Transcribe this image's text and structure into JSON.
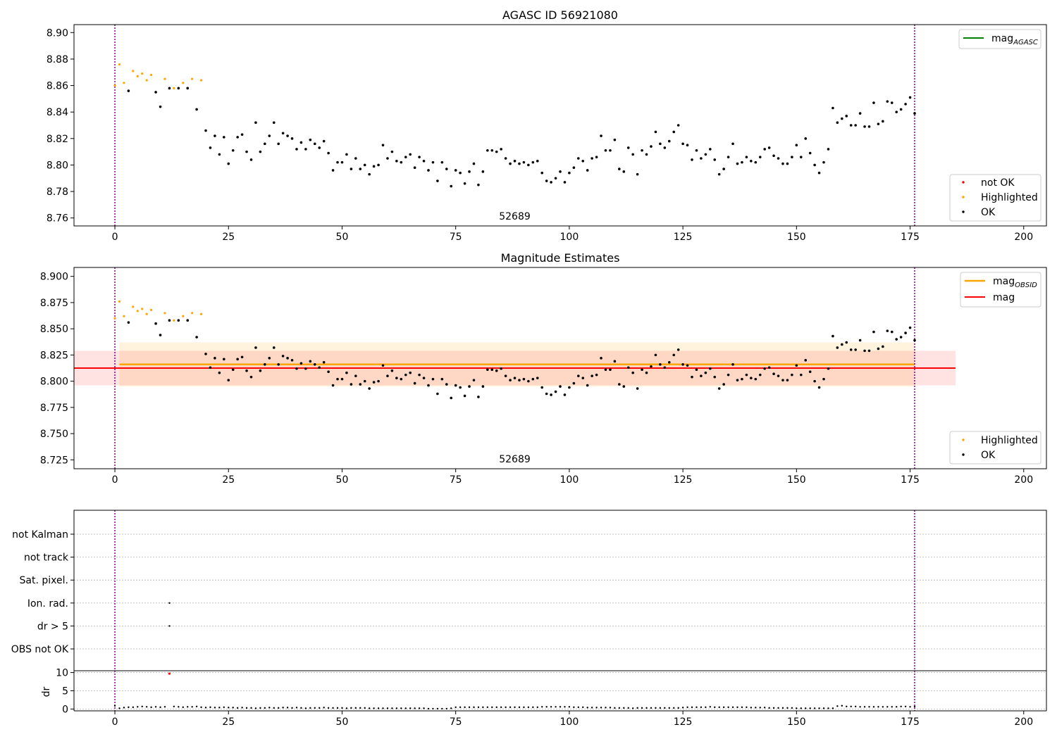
{
  "chart_data": [
    {
      "type": "scatter",
      "title": "AGASC ID 56921080",
      "xlabel": "",
      "ylabel": "",
      "xlim": [
        -9,
        205
      ],
      "ylim": [
        8.754,
        8.906
      ],
      "xticks": [
        0,
        25,
        50,
        75,
        100,
        125,
        150,
        175,
        200
      ],
      "yticks": [
        8.76,
        8.78,
        8.8,
        8.82,
        8.84,
        8.86,
        8.88,
        8.9
      ],
      "ytick_decimals": 2,
      "obsid_label": "52689",
      "obsid_label_x": 88,
      "vlines": [
        0,
        176
      ],
      "vline_color": "#800080",
      "reference_lines": [
        {
          "name": "mag_AGASC",
          "color": "#008000",
          "value": null
        }
      ],
      "legend_top": {
        "placement": "top-right",
        "entries": [
          {
            "label": "mag",
            "sub": "AGASC",
            "color": "#008000",
            "kind": "line"
          }
        ]
      },
      "legend_bottom": {
        "placement": "lower-right",
        "entries": [
          {
            "label": "not OK",
            "color": "#ff0000",
            "kind": "dot"
          },
          {
            "label": "Highlighted",
            "color": "#ffa500",
            "kind": "dot"
          },
          {
            "label": "OK",
            "color": "#000000",
            "kind": "dot"
          }
        ]
      }
    },
    {
      "type": "scatter",
      "title": "Magnitude Estimates",
      "xlabel": "",
      "ylabel": "",
      "xlim": [
        -9,
        205
      ],
      "ylim": [
        8.7165,
        8.9085
      ],
      "xticks": [
        0,
        25,
        50,
        75,
        100,
        125,
        150,
        175,
        200
      ],
      "yticks": [
        8.725,
        8.75,
        8.775,
        8.8,
        8.825,
        8.85,
        8.875,
        8.9
      ],
      "ytick_decimals": 3,
      "obsid_label": "52689",
      "obsid_label_x": 88,
      "vlines": [
        0,
        176
      ],
      "vline_color": "#800080",
      "bands": [
        {
          "name": "mag_OBSID band",
          "x": [
            1,
            176
          ],
          "y": [
            8.795,
            8.837
          ],
          "color": "#ffa500",
          "opacity": 0.13
        },
        {
          "name": "mag band",
          "x": [
            -9,
            185
          ],
          "y": [
            8.796,
            8.829
          ],
          "color": "#ff0000",
          "opacity": 0.11
        }
      ],
      "hlines": [
        {
          "name": "mag_OBSID",
          "x": [
            1,
            176
          ],
          "value": 8.816,
          "color": "#ffa500",
          "width": 2.5
        },
        {
          "name": "mag",
          "x": [
            -9,
            185
          ],
          "value": 8.8125,
          "color": "#ff0000",
          "width": 2
        }
      ],
      "legend_top": {
        "placement": "top-right",
        "entries": [
          {
            "label": "mag",
            "sub": "OBSID",
            "color": "#ffa500",
            "kind": "line"
          },
          {
            "label": "mag",
            "sub": "",
            "color": "#ff0000",
            "kind": "line"
          }
        ]
      },
      "legend_bottom": {
        "placement": "lower-right",
        "entries": [
          {
            "label": "Highlighted",
            "color": "#ffa500",
            "kind": "dot"
          },
          {
            "label": "OK",
            "color": "#000000",
            "kind": "dot"
          }
        ]
      }
    },
    {
      "type": "scatter",
      "title": "",
      "xlabel": "",
      "ylabel": "",
      "xlim": [
        -9,
        205
      ],
      "categories": [
        "OBS not OK",
        "dr > 5",
        "Ion. rad.",
        "Sat. pixel.",
        "not track",
        "not Kalman"
      ],
      "flag_points": [
        {
          "x": 12,
          "category": "Ion. rad."
        },
        {
          "x": 12,
          "category": "dr > 5"
        }
      ],
      "vlines": [
        0,
        176
      ],
      "vline_color": "#800080",
      "grid": true
    },
    {
      "type": "scatter",
      "title": "",
      "xlabel": "",
      "ylabel": "dr",
      "xlim": [
        -9,
        205
      ],
      "ylim": [
        -0.5,
        10.5
      ],
      "xticks": [
        0,
        25,
        50,
        75,
        100,
        125,
        150,
        175,
        200
      ],
      "yticks": [
        0,
        5,
        10
      ],
      "vlines": [
        0,
        176
      ],
      "vline_color": "#800080",
      "grid": true,
      "outlier": {
        "x": 12,
        "y": 9.7,
        "color": "#ff0000"
      }
    }
  ],
  "series": {
    "x": [
      0,
      1,
      2,
      3,
      4,
      5,
      6,
      7,
      8,
      9,
      10,
      11,
      12,
      13,
      14,
      15,
      16,
      17,
      18,
      19,
      20,
      21,
      22,
      23,
      24,
      25,
      26,
      27,
      28,
      29,
      30,
      31,
      32,
      33,
      34,
      35,
      36,
      37,
      38,
      39,
      40,
      41,
      42,
      43,
      44,
      45,
      46,
      47,
      48,
      49,
      50,
      51,
      52,
      53,
      54,
      55,
      56,
      57,
      58,
      59,
      60,
      61,
      62,
      63,
      64,
      65,
      66,
      67,
      68,
      69,
      70,
      71,
      72,
      73,
      74,
      75,
      76,
      77,
      78,
      79,
      80,
      81,
      82,
      83,
      84,
      85,
      86,
      87,
      88,
      89,
      90,
      91,
      92,
      93,
      94,
      95,
      96,
      97,
      98,
      99,
      100,
      101,
      102,
      103,
      104,
      105,
      106,
      107,
      108,
      109,
      110,
      111,
      112,
      113,
      114,
      115,
      116,
      117,
      118,
      119,
      120,
      121,
      122,
      123,
      124,
      125,
      126,
      127,
      128,
      129,
      130,
      131,
      132,
      133,
      134,
      135,
      136,
      137,
      138,
      139,
      140,
      141,
      142,
      143,
      144,
      145,
      146,
      147,
      148,
      149,
      150,
      151,
      152,
      153,
      154,
      155,
      156,
      157,
      158,
      159,
      160,
      161,
      162,
      163,
      164,
      165,
      166,
      167,
      168,
      169,
      170,
      171,
      172,
      173,
      174,
      175,
      176
    ],
    "mag": [
      8.86,
      8.876,
      8.862,
      8.856,
      8.871,
      8.867,
      8.869,
      8.864,
      8.868,
      8.855,
      8.844,
      8.865,
      8.858,
      8.858,
      8.858,
      8.862,
      8.858,
      8.865,
      8.842,
      8.864,
      8.826,
      8.813,
      8.822,
      8.808,
      8.821,
      8.801,
      8.811,
      8.821,
      8.823,
      8.81,
      8.804,
      8.832,
      8.81,
      8.816,
      8.822,
      8.832,
      8.816,
      8.824,
      8.822,
      8.82,
      8.812,
      8.817,
      8.812,
      8.819,
      8.816,
      8.813,
      8.818,
      8.809,
      8.796,
      8.802,
      8.802,
      8.808,
      8.797,
      8.805,
      8.797,
      8.8,
      8.793,
      8.799,
      8.8,
      8.815,
      8.805,
      8.81,
      8.803,
      8.802,
      8.806,
      8.808,
      8.798,
      8.806,
      8.803,
      8.796,
      8.802,
      8.788,
      8.802,
      8.797,
      8.784,
      8.796,
      8.794,
      8.786,
      8.795,
      8.801,
      8.785,
      8.795,
      8.811,
      8.811,
      8.81,
      8.812,
      8.805,
      8.801,
      8.803,
      8.801,
      8.802,
      8.8,
      8.802,
      8.803,
      8.794,
      8.788,
      8.787,
      8.79,
      8.795,
      8.787,
      8.794,
      8.798,
      8.805,
      8.803,
      8.796,
      8.805,
      8.806,
      8.822,
      8.811,
      8.811,
      8.819,
      8.797,
      8.795,
      8.813,
      8.808,
      8.793,
      8.811,
      8.808,
      8.814,
      8.825,
      8.816,
      8.813,
      8.818,
      8.825,
      8.83,
      8.816,
      8.815,
      8.804,
      8.811,
      8.805,
      8.808,
      8.812,
      8.804,
      8.793,
      8.797,
      8.806,
      8.816,
      8.801,
      8.802,
      8.806,
      8.803,
      8.802,
      8.806,
      8.812,
      8.813,
      8.807,
      8.805,
      8.801,
      8.801,
      8.806,
      8.815,
      8.806,
      8.82,
      8.809,
      8.8,
      8.794,
      8.802,
      8.812,
      8.843,
      8.832,
      8.835,
      8.837,
      8.83,
      8.83,
      8.839,
      8.829,
      8.829,
      8.847,
      8.831,
      8.833,
      8.848,
      8.847,
      8.84,
      8.842,
      8.846,
      8.851,
      8.839
    ],
    "highlighted": [
      0,
      1,
      2,
      4,
      5,
      6,
      7,
      8,
      11,
      13,
      15,
      17,
      19
    ],
    "dr": [
      0.9,
      0.2,
      0.4,
      0.5,
      0.5,
      0.6,
      0.7,
      0.6,
      0.5,
      0.6,
      0.5,
      0.6,
      9.7,
      0.7,
      0.6,
      0.5,
      0.6,
      0.6,
      0.7,
      0.5,
      0.4,
      0.5,
      0.4,
      0.4,
      0.5,
      0.4,
      0.4,
      0.3,
      0.4,
      0.3,
      0.3,
      0.2,
      0.3,
      0.3,
      0.4,
      0.3,
      0.3,
      0.4,
      0.4,
      0.3,
      0.4,
      0.3,
      0.2,
      0.3,
      0.3,
      0.3,
      0.4,
      0.3,
      0.3,
      0.3,
      0.3,
      0.2,
      0.3,
      0.3,
      0.3,
      0.3,
      0.2,
      0.2,
      0.2,
      0.2,
      0.2,
      0.2,
      0.2,
      0.2,
      0.2,
      0.2,
      0.2,
      0.2,
      0.2,
      0.1,
      0.1,
      0.1,
      0.1,
      0.1,
      0.2,
      0.5,
      0.5,
      0.5,
      0.5,
      0.5,
      0.5,
      0.5,
      0.5,
      0.5,
      0.5,
      0.5,
      0.5,
      0.5,
      0.5,
      0.5,
      0.5,
      0.5,
      0.5,
      0.5,
      0.6,
      0.6,
      0.6,
      0.6,
      0.6,
      0.6,
      0.6,
      0.5,
      0.5,
      0.5,
      0.4,
      0.4,
      0.4,
      0.4,
      0.4,
      0.4,
      0.3,
      0.3,
      0.3,
      0.3,
      0.2,
      0.3,
      0.3,
      0.3,
      0.3,
      0.3,
      0.3,
      0.3,
      0.3,
      0.3,
      0.3,
      0.4,
      0.5,
      0.5,
      0.5,
      0.5,
      0.5,
      0.6,
      0.5,
      0.5,
      0.5,
      0.5,
      0.5,
      0.5,
      0.5,
      0.5,
      0.4,
      0.4,
      0.4,
      0.4,
      0.3,
      0.3,
      0.3,
      0.3,
      0.3,
      0.3,
      0.2,
      0.2,
      0.2,
      0.2,
      0.2,
      0.2,
      0.2,
      0.2,
      0.2,
      0.8,
      0.9,
      0.7,
      0.7,
      0.7,
      0.6,
      0.6,
      0.6,
      0.6,
      0.6,
      0.6,
      0.6,
      0.6,
      0.6,
      0.7,
      0.7,
      0.6,
      0.7,
      0.8,
      0.7,
      0.6
    ]
  }
}
